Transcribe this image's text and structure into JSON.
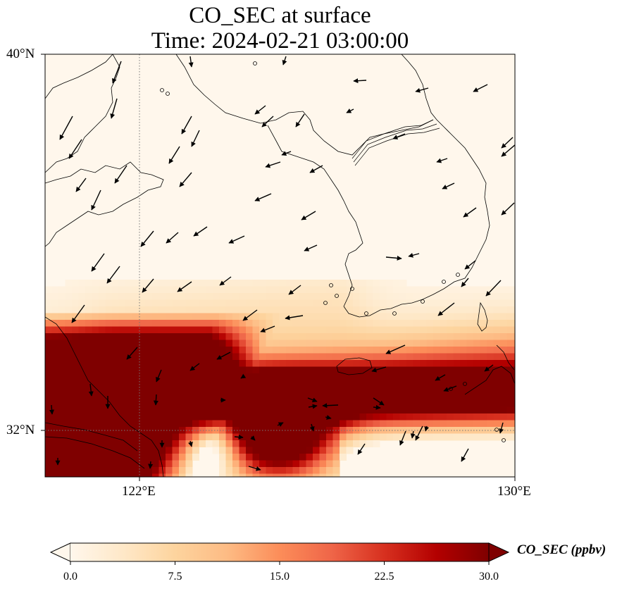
{
  "title": {
    "line1": "CO_SEC at surface",
    "line2": "Time: 2024-02-21 03:00:00"
  },
  "axes": {
    "lat_labels": [
      "40°N",
      "32°N"
    ],
    "lon_labels": [
      "122°E",
      "130°E"
    ],
    "lon_range": [
      120,
      130
    ],
    "lat_range": [
      31,
      40
    ],
    "gridlines": {
      "lon": [
        122
      ],
      "lat": [
        32
      ],
      "style": "dotted"
    }
  },
  "colorbar": {
    "label": "CO_SEC (ppbv)",
    "ticks": [
      "0.0",
      "7.5",
      "15.0",
      "22.5",
      "30.0"
    ],
    "range": [
      0,
      30
    ],
    "colormap": "OrRd",
    "extend": "both",
    "orientation": "horizontal"
  },
  "colors": {
    "low": "#fff7ec",
    "mid": "#fc8d59",
    "high": "#7f0000"
  }
}
